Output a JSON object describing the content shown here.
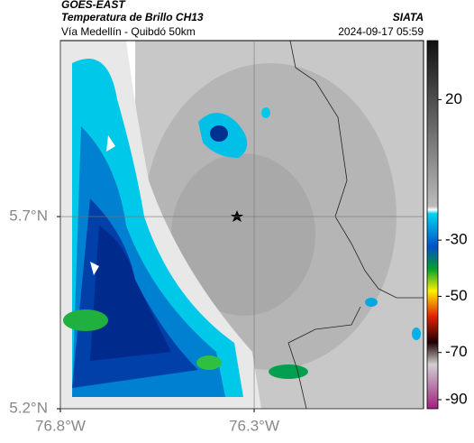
{
  "header": {
    "title": "GOES-EAST",
    "subtitle": "Temperatura de Brillo CH13",
    "source": "SIATA",
    "route": "Vía Medellín - Quibdó 50km",
    "timestamp": "2024-09-17 05:59"
  },
  "map": {
    "xlim": [
      -76.8,
      -75.863
    ],
    "ylim": [
      5.2,
      6.158
    ],
    "xticks": [
      {
        "value": -76.8,
        "label": "76.8°W"
      },
      {
        "value": -76.3,
        "label": "76.3°W"
      }
    ],
    "yticks": [
      {
        "value": 5.2,
        "label": "5.2°N"
      },
      {
        "value": 5.7,
        "label": "5.7°N"
      }
    ],
    "grid": true,
    "colorbar": {
      "lim": [
        -90,
        41
      ],
      "ticks": [
        20,
        -30,
        -50,
        -70,
        -90
      ]
    }
  }
}
